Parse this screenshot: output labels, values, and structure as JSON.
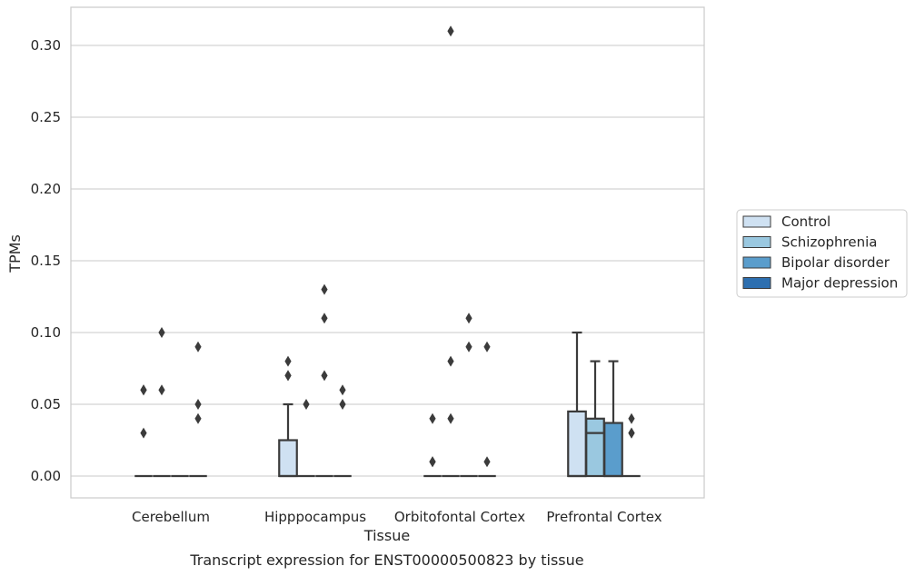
{
  "chart_data": {
    "type": "box",
    "title": "Transcript expression for ENST00000500823 by tissue",
    "xlabel": "Tissue",
    "ylabel": "TPMs",
    "ylim": [
      -0.015,
      0.325
    ],
    "yticks": [
      "0.00",
      "0.05",
      "0.10",
      "0.15",
      "0.20",
      "0.25",
      "0.30"
    ],
    "grid": "horizontal",
    "legend_position": "right",
    "categories": [
      "Cerebellum",
      "Hipppocampus",
      "Orbitofontal Cortex",
      "Prefrontal Cortex"
    ],
    "series": [
      {
        "name": "Control",
        "color": "#cfe1f2",
        "boxes": [
          {
            "q1": 0,
            "median": 0,
            "q3": 0,
            "whisker_low": 0,
            "whisker_high": 0,
            "outliers": [
              0.03,
              0.06,
              0.06
            ]
          },
          {
            "q1": 0,
            "median": 0,
            "q3": 0.025,
            "whisker_low": 0,
            "whisker_high": 0.05,
            "outliers": [
              0.07,
              0.07,
              0.08
            ]
          },
          {
            "q1": 0,
            "median": 0,
            "q3": 0,
            "whisker_low": 0,
            "whisker_high": 0,
            "outliers": [
              0.01,
              0.01,
              0.04
            ]
          },
          {
            "q1": 0,
            "median": 0,
            "q3": 0.045,
            "whisker_low": 0,
            "whisker_high": 0.1,
            "outliers": []
          }
        ]
      },
      {
        "name": "Schizophrenia",
        "color": "#9ac8e0",
        "boxes": [
          {
            "q1": 0,
            "median": 0,
            "q3": 0,
            "whisker_low": 0,
            "whisker_high": 0,
            "outliers": [
              0.06,
              0.1
            ]
          },
          {
            "q1": 0,
            "median": 0,
            "q3": 0,
            "whisker_low": 0,
            "whisker_high": 0,
            "outliers": [
              0.05
            ]
          },
          {
            "q1": 0,
            "median": 0,
            "q3": 0,
            "whisker_low": 0,
            "whisker_high": 0,
            "outliers": [
              0.31,
              0.04,
              0.08
            ]
          },
          {
            "q1": 0,
            "median": 0.03,
            "q3": 0.04,
            "whisker_low": 0,
            "whisker_high": 0.08,
            "outliers": []
          }
        ]
      },
      {
        "name": "Bipolar disorder",
        "color": "#5a9dcc",
        "boxes": [
          {
            "q1": 0,
            "median": 0,
            "q3": 0,
            "whisker_low": 0,
            "whisker_high": 0,
            "outliers": []
          },
          {
            "q1": 0,
            "median": 0,
            "q3": 0,
            "whisker_low": 0,
            "whisker_high": 0,
            "outliers": [
              0.07,
              0.11,
              0.13
            ]
          },
          {
            "q1": 0,
            "median": 0,
            "q3": 0,
            "whisker_low": 0,
            "whisker_high": 0,
            "outliers": [
              0.09,
              0.11
            ]
          },
          {
            "q1": 0,
            "median": 0,
            "q3": 0.037,
            "whisker_low": 0,
            "whisker_high": 0.08,
            "outliers": []
          }
        ]
      },
      {
        "name": "Major depression",
        "color": "#2d6fb0",
        "boxes": [
          {
            "q1": 0,
            "median": 0,
            "q3": 0,
            "whisker_low": 0,
            "whisker_high": 0,
            "outliers": [
              0.04,
              0.05,
              0.09
            ]
          },
          {
            "q1": 0,
            "median": 0,
            "q3": 0,
            "whisker_low": 0,
            "whisker_high": 0,
            "outliers": [
              0.05,
              0.06
            ]
          },
          {
            "q1": 0,
            "median": 0,
            "q3": 0,
            "whisker_low": 0,
            "whisker_high": 0,
            "outliers": [
              0.01,
              0.09
            ]
          },
          {
            "q1": 0,
            "median": 0,
            "q3": 0,
            "whisker_low": 0,
            "whisker_high": 0,
            "outliers": [
              0.03,
              0.03,
              0.04
            ]
          }
        ]
      }
    ]
  }
}
